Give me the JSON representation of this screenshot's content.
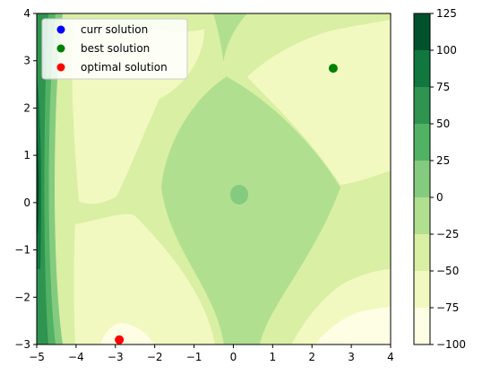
{
  "chart_data": {
    "type": "contourf",
    "x_ticks": [
      "−5",
      "−4",
      "−3",
      "−2",
      "−1",
      "0",
      "1",
      "2",
      "3",
      "4"
    ],
    "y_ticks": [
      "−3",
      "−2",
      "−1",
      "0",
      "1",
      "2",
      "3",
      "4"
    ],
    "xlim": [
      -5,
      4
    ],
    "ylim": [
      -3,
      4
    ],
    "colorbar": {
      "levels": [
        -100,
        -75,
        -50,
        -25,
        0,
        25,
        50,
        75,
        100,
        125
      ],
      "tick_labels": [
        "−100",
        "−75",
        "−50",
        "−25",
        "0",
        "25",
        "50",
        "75",
        "100",
        "125"
      ],
      "colors": [
        "#fefee4",
        "#f1f9c0",
        "#d9efa3",
        "#b0df90",
        "#85cb7f",
        "#52b264",
        "#2e944f",
        "#10773f",
        "#00522c"
      ]
    },
    "legend": {
      "placement": "upper-left",
      "entries": [
        {
          "label": "curr solution",
          "color": "#0000ff"
        },
        {
          "label": "best solution",
          "color": "#008000"
        },
        {
          "label": "optimal solution",
          "color": "#ff0000"
        }
      ]
    },
    "points": [
      {
        "name": "best solution",
        "x": 2.54,
        "y": 2.84,
        "color": "#008000"
      },
      {
        "name": "optimal solution",
        "x": -2.9,
        "y": -2.9,
        "color": "#ff0000"
      }
    ]
  }
}
